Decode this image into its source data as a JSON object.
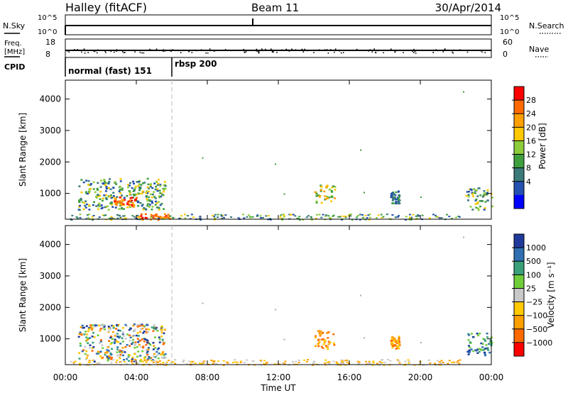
{
  "header": {
    "station": "Halley (fitACF)",
    "beam": "Beam 11",
    "date": "30/Apr/2014"
  },
  "strips": {
    "nsky": {
      "label": "N.Sky",
      "tick_top": "10^5",
      "tick_bottom": "10^0"
    },
    "nsearch": {
      "label": "N.Search",
      "tick_top": "10^5",
      "tick_bottom": "10^0"
    },
    "freq": {
      "label_line1": "Freq.",
      "label_line2": "[MHz]",
      "tick_top": "18",
      "tick_bottom": "8"
    },
    "nave": {
      "label": "Nave",
      "tick_top": "60",
      "tick_bottom": "0"
    },
    "cpid": {
      "label": "CPID",
      "mode1": "normal (fast) 151",
      "mode2": "rbsp 200"
    }
  },
  "x_axis": {
    "label": "Time UT",
    "ticks": [
      "00:00",
      "04:00",
      "08:00",
      "12:00",
      "16:00",
      "20:00",
      "00:00"
    ]
  },
  "chart_data": [
    {
      "type": "heatmap",
      "name": "power-panel",
      "ylabel": "Slant Range [km]",
      "xlim_hours": [
        0,
        24
      ],
      "ylim_km": [
        180,
        4600
      ],
      "yticks": [
        1000,
        2000,
        3000,
        4000
      ],
      "colorbar": {
        "label": "Power [dB]",
        "ticks": [
          "28",
          "24",
          "20",
          "16",
          "12",
          "8",
          "4"
        ],
        "colors": [
          "#ff0000",
          "#ff6a00",
          "#ff9f00",
          "#ffc800",
          "#8ccc3a",
          "#3f9f3f",
          "#3a7a7a",
          "#2450b0",
          "#0000ff"
        ]
      },
      "regions": [
        {
          "t0": 0.7,
          "t1": 5.6,
          "r0": 500,
          "r1": 1500,
          "value": "low-mixed"
        },
        {
          "t0": 2.7,
          "t1": 4.0,
          "r0": 600,
          "r1": 900,
          "value": "high"
        },
        {
          "t0": 4.1,
          "t1": 5.9,
          "r0": 180,
          "r1": 380,
          "value": "high"
        },
        {
          "t0": 14.0,
          "t1": 15.2,
          "r0": 700,
          "r1": 1300,
          "value": "mid"
        },
        {
          "t0": 18.3,
          "t1": 18.8,
          "r0": 700,
          "r1": 1100,
          "value": "low"
        },
        {
          "t0": 22.5,
          "t1": 24.0,
          "r0": 500,
          "r1": 1200,
          "value": "low-mixed"
        }
      ]
    },
    {
      "type": "heatmap",
      "name": "velocity-panel",
      "ylabel": "Slant Range [km]",
      "xlim_hours": [
        0,
        24
      ],
      "ylim_km": [
        180,
        4600
      ],
      "yticks": [
        1000,
        2000,
        3000,
        4000
      ],
      "colorbar": {
        "label": "Velocity [m s⁻¹]",
        "ticks": [
          "1000",
          "500",
          "100",
          "25",
          "−25",
          "−100",
          "−500",
          "−1000"
        ],
        "colors": [
          "#1f3a9a",
          "#2f6fb2",
          "#3aa07a",
          "#6fcd3a",
          "#c8c8c8",
          "#ffc800",
          "#ff9f00",
          "#ff6a00",
          "#ff0000"
        ]
      },
      "regions": [
        {
          "t0": 0.7,
          "t1": 5.6,
          "r0": 300,
          "r1": 1500,
          "value": "mixed"
        },
        {
          "t0": 14.0,
          "t1": 15.2,
          "r0": 700,
          "r1": 1300,
          "value": "negative"
        },
        {
          "t0": 18.3,
          "t1": 18.8,
          "r0": 700,
          "r1": 1100,
          "value": "negative"
        },
        {
          "t0": 22.5,
          "t1": 24.0,
          "r0": 500,
          "r1": 1200,
          "value": "positive"
        }
      ]
    }
  ]
}
